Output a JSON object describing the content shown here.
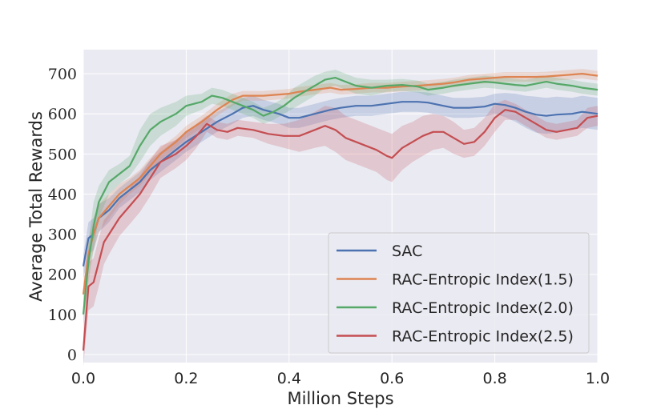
{
  "chart_data": {
    "type": "line",
    "title": "",
    "xlabel": "Million Steps",
    "ylabel": "Average Total Rewards",
    "xlim": [
      0.0,
      1.0
    ],
    "ylim": [
      -20,
      760
    ],
    "xticks": [
      0.0,
      0.2,
      0.4,
      0.6,
      0.8,
      1.0
    ],
    "xtick_labels": [
      "0.0",
      "0.2",
      "0.4",
      "0.6",
      "0.8",
      "1.0"
    ],
    "yticks": [
      0,
      100,
      200,
      300,
      400,
      500,
      600,
      700
    ],
    "ytick_labels": [
      "0",
      "100",
      "200",
      "300",
      "400",
      "500",
      "600",
      "700"
    ],
    "grid": true,
    "legend_position": "lower-right",
    "series": [
      {
        "name": "SAC",
        "color": "#4c72b0",
        "x": [
          0,
          0.01,
          0.02,
          0.03,
          0.05,
          0.07,
          0.09,
          0.11,
          0.13,
          0.15,
          0.18,
          0.2,
          0.23,
          0.26,
          0.29,
          0.31,
          0.33,
          0.35,
          0.38,
          0.4,
          0.42,
          0.45,
          0.48,
          0.5,
          0.53,
          0.56,
          0.59,
          0.62,
          0.65,
          0.67,
          0.7,
          0.72,
          0.75,
          0.78,
          0.8,
          0.82,
          0.84,
          0.86,
          0.88,
          0.9,
          0.92,
          0.95,
          0.97,
          1.0
        ],
        "y": [
          220,
          290,
          300,
          340,
          360,
          390,
          410,
          430,
          460,
          480,
          510,
          530,
          555,
          580,
          600,
          615,
          620,
          610,
          600,
          590,
          590,
          600,
          610,
          615,
          620,
          620,
          625,
          630,
          630,
          628,
          620,
          615,
          615,
          618,
          625,
          622,
          615,
          605,
          598,
          595,
          598,
          600,
          605,
          600
        ],
        "band": [
          30,
          40,
          40,
          35,
          30,
          25,
          25,
          25,
          25,
          25,
          25,
          25,
          25,
          25,
          25,
          25,
          25,
          25,
          25,
          25,
          25,
          25,
          25,
          25,
          25,
          25,
          25,
          25,
          25,
          25,
          25,
          25,
          25,
          25,
          25,
          30,
          35,
          40,
          45,
          45,
          45,
          40,
          40,
          40
        ]
      },
      {
        "name": "RAC-Entropic Index(1.5)",
        "color": "#dd8452",
        "x": [
          0,
          0.01,
          0.02,
          0.03,
          0.05,
          0.07,
          0.09,
          0.11,
          0.13,
          0.15,
          0.18,
          0.2,
          0.23,
          0.26,
          0.29,
          0.31,
          0.33,
          0.35,
          0.38,
          0.4,
          0.42,
          0.45,
          0.48,
          0.5,
          0.53,
          0.56,
          0.59,
          0.62,
          0.65,
          0.67,
          0.7,
          0.72,
          0.75,
          0.78,
          0.8,
          0.82,
          0.84,
          0.86,
          0.88,
          0.9,
          0.92,
          0.95,
          0.97,
          1.0
        ],
        "y": [
          150,
          250,
          300,
          340,
          370,
          400,
          420,
          440,
          470,
          500,
          530,
          555,
          580,
          610,
          635,
          645,
          645,
          645,
          648,
          650,
          655,
          660,
          665,
          660,
          662,
          665,
          665,
          668,
          670,
          672,
          675,
          678,
          685,
          688,
          690,
          692,
          692,
          692,
          692,
          693,
          695,
          698,
          700,
          695
        ],
        "band": [
          30,
          40,
          40,
          35,
          30,
          25,
          20,
          20,
          20,
          15,
          15,
          15,
          15,
          15,
          15,
          12,
          12,
          12,
          12,
          12,
          12,
          12,
          12,
          12,
          12,
          12,
          12,
          12,
          12,
          12,
          12,
          12,
          12,
          12,
          12,
          12,
          12,
          12,
          12,
          12,
          12,
          12,
          12,
          12
        ]
      },
      {
        "name": "RAC-Entropic Index(2.0)",
        "color": "#55a868",
        "x": [
          0,
          0.01,
          0.02,
          0.03,
          0.05,
          0.07,
          0.09,
          0.11,
          0.13,
          0.15,
          0.18,
          0.2,
          0.23,
          0.25,
          0.27,
          0.29,
          0.31,
          0.33,
          0.35,
          0.37,
          0.39,
          0.41,
          0.43,
          0.45,
          0.47,
          0.49,
          0.51,
          0.53,
          0.56,
          0.59,
          0.62,
          0.65,
          0.67,
          0.7,
          0.72,
          0.75,
          0.78,
          0.8,
          0.82,
          0.84,
          0.86,
          0.88,
          0.9,
          0.92,
          0.95,
          0.97,
          1.0
        ],
        "y": [
          100,
          230,
          320,
          380,
          430,
          450,
          470,
          520,
          560,
          580,
          600,
          620,
          630,
          645,
          640,
          630,
          620,
          610,
          595,
          605,
          620,
          640,
          655,
          670,
          685,
          690,
          680,
          670,
          665,
          670,
          672,
          668,
          660,
          665,
          670,
          675,
          680,
          678,
          675,
          672,
          670,
          675,
          680,
          675,
          670,
          665,
          660
        ],
        "band": [
          30,
          50,
          60,
          40,
          30,
          25,
          25,
          40,
          40,
          35,
          30,
          25,
          20,
          20,
          20,
          20,
          20,
          20,
          20,
          20,
          20,
          25,
          25,
          25,
          20,
          20,
          20,
          20,
          20,
          15,
          15,
          15,
          15,
          15,
          15,
          15,
          15,
          15,
          15,
          15,
          15,
          15,
          15,
          15,
          15,
          15,
          15
        ]
      },
      {
        "name": "RAC-Entropic Index(2.5)",
        "color": "#c44e52",
        "x": [
          0,
          0.01,
          0.02,
          0.03,
          0.04,
          0.05,
          0.07,
          0.09,
          0.11,
          0.13,
          0.15,
          0.18,
          0.2,
          0.22,
          0.24,
          0.26,
          0.28,
          0.3,
          0.33,
          0.36,
          0.39,
          0.42,
          0.45,
          0.47,
          0.49,
          0.51,
          0.53,
          0.55,
          0.57,
          0.59,
          0.6,
          0.62,
          0.64,
          0.66,
          0.68,
          0.7,
          0.72,
          0.74,
          0.76,
          0.78,
          0.8,
          0.82,
          0.84,
          0.86,
          0.88,
          0.9,
          0.92,
          0.94,
          0.96,
          0.98,
          1.0
        ],
        "y": [
          10,
          170,
          180,
          230,
          280,
          300,
          340,
          370,
          400,
          440,
          480,
          500,
          520,
          545,
          575,
          560,
          555,
          565,
          560,
          550,
          545,
          545,
          560,
          570,
          560,
          540,
          530,
          520,
          510,
          495,
          490,
          515,
          530,
          545,
          555,
          555,
          540,
          525,
          530,
          555,
          590,
          610,
          605,
          590,
          575,
          560,
          555,
          560,
          565,
          590,
          595
        ],
        "band": [
          40,
          60,
          60,
          60,
          55,
          50,
          45,
          45,
          45,
          45,
          40,
          35,
          35,
          30,
          20,
          20,
          20,
          20,
          20,
          25,
          30,
          40,
          45,
          50,
          55,
          55,
          55,
          55,
          55,
          60,
          60,
          55,
          50,
          50,
          45,
          40,
          40,
          35,
          35,
          35,
          35,
          25,
          20,
          20,
          20,
          20,
          20,
          20,
          20,
          25,
          25
        ]
      }
    ]
  }
}
